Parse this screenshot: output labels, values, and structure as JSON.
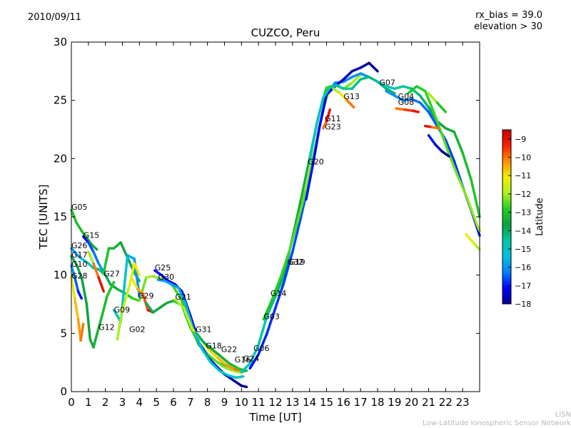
{
  "header": {
    "date": "2010/09/11",
    "info_line1": "rx_bias = 39.0",
    "info_line2": "elevation > 30"
  },
  "footer": {
    "credit_line1": "LISN",
    "credit_line2": "Low-Latitude Ionospheric Sensor Network"
  },
  "chart_data": {
    "type": "scatter",
    "title": "CUZCO, Peru",
    "xlabel": "Time [UT]",
    "ylabel": "TEC [UNITS]",
    "xlim": [
      0,
      24
    ],
    "ylim": [
      0,
      30
    ],
    "x_ticks": [
      "0",
      "1",
      "2",
      "3",
      "4",
      "5",
      "6",
      "7",
      "8",
      "9",
      "10",
      "11",
      "12",
      "13",
      "14",
      "15",
      "16",
      "17",
      "18",
      "19",
      "20",
      "21",
      "22",
      "23"
    ],
    "y_ticks": [
      "0",
      "5",
      "10",
      "15",
      "20",
      "25",
      "30"
    ],
    "grid": false,
    "colorbar": {
      "label": "Latitude",
      "min": -18,
      "max": -8.5,
      "ticks": [
        "-9",
        "-10",
        "-11",
        "-12",
        "-13",
        "-14",
        "-15",
        "-16",
        "-17",
        "-18"
      ],
      "colors": [
        "#00008f",
        "#0000ff",
        "#0080ff",
        "#00c0e0",
        "#00c8a0",
        "#10a040",
        "#20d020",
        "#b0f020",
        "#f0f000",
        "#ff9000",
        "#ff2000",
        "#c00000"
      ]
    },
    "satellite_labels": [
      {
        "text": "G05",
        "x": 0.0,
        "y": 15.6
      },
      {
        "text": "G15",
        "x": 0.7,
        "y": 13.2
      },
      {
        "text": "G26",
        "x": 0.0,
        "y": 12.3
      },
      {
        "text": "G17",
        "x": 0.0,
        "y": 11.5
      },
      {
        "text": "G10",
        "x": 0.0,
        "y": 10.7
      },
      {
        "text": "G28",
        "x": 0.0,
        "y": 9.7
      },
      {
        "text": "G27",
        "x": 1.9,
        "y": 9.9
      },
      {
        "text": "G12",
        "x": 1.6,
        "y": 5.3
      },
      {
        "text": "G09",
        "x": 2.5,
        "y": 6.8
      },
      {
        "text": "G02",
        "x": 3.4,
        "y": 5.1
      },
      {
        "text": "G29",
        "x": 3.9,
        "y": 8.0
      },
      {
        "text": "G25",
        "x": 4.9,
        "y": 10.4
      },
      {
        "text": "G30",
        "x": 5.1,
        "y": 9.6
      },
      {
        "text": "G21",
        "x": 6.1,
        "y": 7.9
      },
      {
        "text": "G31",
        "x": 7.3,
        "y": 5.1
      },
      {
        "text": "G18",
        "x": 7.9,
        "y": 3.7
      },
      {
        "text": "G22",
        "x": 8.8,
        "y": 3.4
      },
      {
        "text": "G16",
        "x": 9.6,
        "y": 2.5
      },
      {
        "text": "G24",
        "x": 10.1,
        "y": 2.6
      },
      {
        "text": "G06",
        "x": 10.7,
        "y": 3.5
      },
      {
        "text": "G03",
        "x": 11.3,
        "y": 6.2
      },
      {
        "text": "G14",
        "x": 11.7,
        "y": 8.2
      },
      {
        "text": "G32",
        "x": 12.7,
        "y": 10.9
      },
      {
        "text": "G19",
        "x": 12.8,
        "y": 10.9
      },
      {
        "text": "G20",
        "x": 13.9,
        "y": 19.5
      },
      {
        "text": "G11",
        "x": 14.9,
        "y": 23.2
      },
      {
        "text": "G23",
        "x": 14.9,
        "y": 22.5
      },
      {
        "text": "G13",
        "x": 16.0,
        "y": 25.1
      },
      {
        "text": "G07",
        "x": 18.1,
        "y": 26.3
      },
      {
        "text": "G04",
        "x": 19.2,
        "y": 25.1
      },
      {
        "text": "G08",
        "x": 19.2,
        "y": 24.6
      }
    ],
    "series": [
      {
        "lat": [
          -13,
          -13.5
        ],
        "x": [
          0.0,
          0.3,
          0.6,
          0.9,
          1.2,
          1.5
        ],
        "y": [
          15.6,
          14.5,
          13.8,
          13.2,
          12.6,
          12.2
        ]
      },
      {
        "lat": [
          -17,
          -16
        ],
        "x": [
          0.7,
          1.0,
          1.3,
          1.6,
          2.0
        ],
        "y": [
          13.3,
          12.8,
          12.0,
          11.0,
          10.0
        ]
      },
      {
        "lat": [
          -16,
          -12,
          -14
        ],
        "x": [
          0.0,
          0.3,
          0.6,
          1.0,
          1.3,
          1.6,
          2.0,
          2.3,
          2.7,
          3.2,
          3.6,
          4.0,
          4.4,
          4.8,
          5.2,
          5.6,
          6.0,
          6.5,
          7.0,
          7.5,
          8.0,
          8.5,
          9.0,
          9.5,
          10.0,
          10.3
        ],
        "y": [
          12.3,
          11.8,
          11.4,
          11.0,
          10.6,
          10.5,
          10.0,
          9.2,
          8.8,
          8.4,
          8.0,
          7.8,
          9.8,
          9.9,
          9.7,
          9.6,
          9.0,
          7.8,
          5.6,
          4.0,
          3.2,
          2.6,
          2.2,
          1.9,
          1.7,
          1.8
        ]
      },
      {
        "lat": [
          -14,
          -13
        ],
        "x": [
          0.0,
          0.3,
          0.6,
          0.9,
          1.1,
          1.3,
          1.5,
          1.8,
          2.1,
          2.5
        ],
        "y": [
          11.6,
          10.9,
          9.8,
          7.5,
          4.5,
          3.8,
          4.9,
          6.5,
          8.2,
          9.4
        ]
      },
      {
        "lat": [
          -16,
          -17
        ],
        "x": [
          0.0,
          0.2,
          0.4,
          0.6
        ],
        "y": [
          10.8,
          9.8,
          8.6,
          8.0
        ]
      },
      {
        "lat": [
          -11,
          -10
        ],
        "x": [
          0.0,
          0.2,
          0.4,
          0.55,
          0.7
        ],
        "y": [
          9.8,
          8.0,
          6.2,
          4.4,
          5.8
        ]
      },
      {
        "lat": [
          -12,
          -10,
          -9
        ],
        "x": [
          1.0,
          1.3,
          1.6,
          1.9
        ],
        "y": [
          12.0,
          11.0,
          9.8,
          8.6
        ]
      },
      {
        "lat": [
          -13,
          -14
        ],
        "x": [
          1.9,
          2.2,
          2.5,
          2.9,
          3.3,
          3.7,
          4.0
        ],
        "y": [
          10.2,
          12.3,
          12.3,
          12.8,
          11.5,
          10.2,
          9.5
        ]
      },
      {
        "lat": [
          -15,
          -16
        ],
        "x": [
          2.5,
          2.9,
          3.3,
          3.7,
          4.0
        ],
        "y": [
          7.0,
          6.0,
          11.7,
          11.4,
          8.2
        ]
      },
      {
        "lat": [
          -12,
          -11
        ],
        "x": [
          2.7,
          3.0,
          3.4,
          3.7,
          4.0
        ],
        "y": [
          4.5,
          7.0,
          9.0,
          11.0,
          10.0
        ]
      },
      {
        "lat": [
          -11,
          -10,
          -9
        ],
        "x": [
          3.6,
          3.9,
          4.2,
          4.5,
          4.8
        ],
        "y": [
          9.6,
          8.8,
          8.4,
          7.0,
          6.8
        ]
      },
      {
        "lat": [
          -14,
          -12
        ],
        "x": [
          4.4,
          4.8,
          5.2,
          5.6,
          6.0,
          6.5,
          7.0,
          7.5,
          8.0,
          8.5,
          9.0,
          9.5,
          10.0
        ],
        "y": [
          7.6,
          6.8,
          7.2,
          7.6,
          7.8,
          7.4,
          5.5,
          4.2,
          3.2,
          2.6,
          2.1,
          1.8,
          1.6
        ]
      },
      {
        "lat": [
          -17,
          -18
        ],
        "x": [
          4.9,
          5.3,
          5.7,
          6.1,
          6.5,
          7.0,
          7.5,
          8.0,
          8.5,
          9.0,
          9.5,
          10.0,
          10.3
        ],
        "y": [
          10.4,
          10.0,
          9.5,
          9.2,
          8.6,
          6.5,
          4.2,
          3.0,
          2.2,
          1.5,
          1.0,
          0.5,
          0.4
        ]
      },
      {
        "lat": [
          -16,
          -15
        ],
        "x": [
          5.1,
          5.5,
          5.9,
          6.3,
          6.7,
          7.2,
          7.7,
          8.2,
          8.7,
          9.2,
          9.7,
          10.1
        ],
        "y": [
          9.6,
          9.5,
          9.2,
          8.9,
          7.6,
          5.2,
          3.6,
          2.5,
          1.8,
          1.4,
          1.2,
          1.3
        ]
      },
      {
        "lat": [
          -12,
          -11,
          -10
        ],
        "x": [
          6.1,
          6.6,
          7.1,
          7.6,
          8.1,
          8.6,
          9.1,
          9.6,
          10.0
        ],
        "y": [
          7.9,
          7.2,
          5.4,
          4.5,
          3.6,
          2.9,
          2.3,
          1.9,
          1.8
        ]
      },
      {
        "lat": [
          -14,
          -13
        ],
        "x": [
          7.3,
          7.8,
          8.3,
          8.8,
          9.3,
          9.8,
          10.2
        ],
        "y": [
          5.1,
          4.2,
          3.6,
          3.0,
          2.4,
          2.0,
          1.8
        ]
      },
      {
        "lat": [
          -15,
          -14,
          -13,
          -12
        ],
        "x": [
          10.0,
          10.5,
          11.0,
          11.5,
          12.0,
          12.5,
          13.0,
          13.5,
          14.0,
          14.5,
          15.0,
          15.5,
          16.0,
          16.5,
          17.0
        ],
        "y": [
          1.7,
          2.4,
          4.0,
          6.5,
          8.2,
          10.0,
          13.2,
          16.5,
          20.0,
          23.5,
          26.1,
          26.3,
          26.0,
          26.5,
          27.2
        ]
      },
      {
        "lat": [
          -17,
          -16
        ],
        "x": [
          10.5,
          11.0,
          11.5,
          12.0,
          12.5,
          13.0,
          13.5,
          14.0,
          14.5,
          15.0,
          15.5,
          16.0,
          16.5,
          17.0,
          17.5
        ],
        "y": [
          2.0,
          3.2,
          5.0,
          7.2,
          9.4,
          12.0,
          15.0,
          18.2,
          22.2,
          25.4,
          26.5,
          26.6,
          27.0,
          27.3,
          27.0
        ]
      },
      {
        "lat": [
          -13,
          -12
        ],
        "x": [
          11.3,
          11.8,
          12.3,
          12.8,
          13.3,
          13.8,
          14.3,
          14.8,
          15.2
        ],
        "y": [
          6.2,
          7.9,
          9.8,
          12.0,
          14.6,
          17.4,
          20.8,
          24.2,
          26.0
        ]
      },
      {
        "lat": [
          -17,
          -18
        ],
        "x": [
          13.8,
          14.2,
          14.6,
          15.0,
          15.5,
          16.0,
          16.5,
          17.0,
          17.5,
          18.0
        ],
        "y": [
          16.5,
          19.5,
          22.8,
          25.5,
          26.2,
          26.8,
          27.5,
          27.8,
          28.2,
          27.5
        ]
      },
      {
        "lat": [
          -15,
          -14
        ],
        "x": [
          14.0,
          14.4,
          14.8,
          15.2,
          15.6,
          16.0,
          16.5,
          17.0,
          17.5,
          18.0,
          18.5,
          19.0
        ],
        "y": [
          19.8,
          22.8,
          25.2,
          26.1,
          26.3,
          26.0,
          26.0,
          26.8,
          27.0,
          26.6,
          26.0,
          25.6
        ]
      },
      {
        "lat": [
          -12,
          -11,
          -10
        ],
        "x": [
          15.4,
          15.8,
          16.2,
          16.6
        ],
        "y": [
          26.0,
          25.6,
          25.0,
          24.4
        ]
      },
      {
        "lat": [
          -10,
          -9
        ],
        "x": [
          14.8,
          15.0,
          15.2
        ],
        "y": [
          22.6,
          23.2,
          24.2
        ]
      },
      {
        "lat": [
          -15,
          -14,
          -13
        ],
        "x": [
          18.0,
          18.5,
          19.0,
          19.5,
          20.0,
          20.5,
          21.0,
          21.5,
          22.0,
          22.5,
          23.0,
          23.5,
          24.0
        ],
        "y": [
          26.6,
          26.2,
          26.0,
          26.2,
          26.0,
          25.4,
          24.4,
          23.2,
          22.6,
          22.3,
          20.5,
          18.2,
          15.0
        ]
      },
      {
        "lat": [
          -16,
          -17
        ],
        "x": [
          18.5,
          19.0,
          19.5,
          20.0,
          20.5,
          21.0,
          21.5,
          22.0,
          22.5,
          23.0,
          23.5,
          24.0
        ],
        "y": [
          25.8,
          25.4,
          25.0,
          25.1,
          24.8,
          24.0,
          22.8,
          21.6,
          19.8,
          17.6,
          15.6,
          13.4
        ]
      },
      {
        "lat": [
          -13,
          -12
        ],
        "x": [
          19.8,
          20.3,
          20.8,
          21.3,
          21.8,
          22.3,
          22.8,
          23.3,
          23.8,
          24.0
        ],
        "y": [
          25.6,
          26.2,
          25.8,
          24.0,
          22.0,
          20.0,
          18.2,
          16.5,
          14.5,
          13.8
        ]
      },
      {
        "lat": [
          -10,
          -9
        ],
        "x": [
          19.1,
          19.6,
          20.1,
          20.4
        ],
        "y": [
          24.3,
          24.2,
          24.1,
          24.0
        ]
      },
      {
        "lat": [
          -9,
          -10
        ],
        "x": [
          20.8,
          21.2,
          21.6
        ],
        "y": [
          22.8,
          22.7,
          22.6
        ]
      },
      {
        "lat": [
          -11,
          -12
        ],
        "x": [
          23.2,
          23.5,
          23.8,
          24.0
        ],
        "y": [
          13.5,
          13.0,
          12.5,
          12.2
        ]
      },
      {
        "lat": [
          -17,
          -18
        ],
        "x": [
          21.0,
          21.4,
          21.8,
          22.2
        ],
        "y": [
          22.0,
          21.2,
          20.6,
          20.2
        ]
      },
      {
        "lat": [
          -12,
          -13
        ],
        "x": [
          21.0,
          21.5,
          22.0
        ],
        "y": [
          25.6,
          24.8,
          24.0
        ]
      }
    ]
  }
}
